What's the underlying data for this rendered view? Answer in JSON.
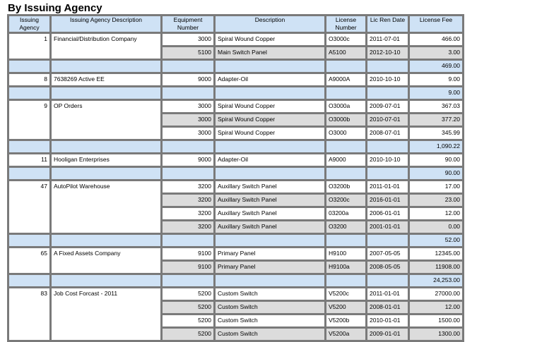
{
  "title": "By Issuing Agency",
  "columns": [
    "Issuing Agency",
    "Issuing Agency Description",
    "Equipment Number",
    "Description",
    "License Number",
    "Lic Ren Date",
    "License Fee"
  ],
  "colors": {
    "header": "#cfe2f5",
    "subtotal": "#cfe2f5",
    "alt_row": "#dcdcdc",
    "border": "#7a7a7a"
  },
  "groups": [
    {
      "agency": "1",
      "description": "Financial/Distribution Company",
      "subtotal": "469.00",
      "rows": [
        {
          "equipment": "3000",
          "desc": "Spiral Wound Copper",
          "license": "O3000c",
          "date": "2011-07-01",
          "fee": "466.00"
        },
        {
          "equipment": "5100",
          "desc": "Main Switch Panel",
          "license": "A5100",
          "date": "2012-10-10",
          "fee": "3.00"
        }
      ]
    },
    {
      "agency": "8",
      "description": "7638269 Active EE",
      "subtotal": "9.00",
      "rows": [
        {
          "equipment": "9000",
          "desc": "Adapter-Oil",
          "license": "A9000A",
          "date": "2010-10-10",
          "fee": "9.00"
        }
      ]
    },
    {
      "agency": "9",
      "description": "OP Orders",
      "subtotal": "1,090.22",
      "rows": [
        {
          "equipment": "3000",
          "desc": "Spiral Wound Copper",
          "license": "O3000a",
          "date": "2009-07-01",
          "fee": "367.03"
        },
        {
          "equipment": "3000",
          "desc": "Spiral Wound Copper",
          "license": "O3000b",
          "date": "2010-07-01",
          "fee": "377.20"
        },
        {
          "equipment": "3000",
          "desc": "Spiral Wound Copper",
          "license": "O3000",
          "date": "2008-07-01",
          "fee": "345.99"
        }
      ]
    },
    {
      "agency": "11",
      "description": "Hooligan Enterprises",
      "subtotal": "90.00",
      "rows": [
        {
          "equipment": "9000",
          "desc": "Adapter-Oil",
          "license": "A9000",
          "date": "2010-10-10",
          "fee": "90.00"
        }
      ]
    },
    {
      "agency": "47",
      "description": "AutoPilot Warehouse",
      "subtotal": "52.00",
      "rows": [
        {
          "equipment": "3200",
          "desc": "Auxillary Switch Panel",
          "license": "O3200b",
          "date": "2011-01-01",
          "fee": "17.00"
        },
        {
          "equipment": "3200",
          "desc": "Auxillary Switch Panel",
          "license": "O3200c",
          "date": "2016-01-01",
          "fee": "23.00"
        },
        {
          "equipment": "3200",
          "desc": "Auxillary Switch Panel",
          "license": "03200a",
          "date": "2006-01-01",
          "fee": "12.00"
        },
        {
          "equipment": "3200",
          "desc": "Auxillary Switch Panel",
          "license": "O3200",
          "date": "2001-01-01",
          "fee": "0.00"
        }
      ]
    },
    {
      "agency": "65",
      "description": "A Fixed Assets Company",
      "subtotal": "24,253.00",
      "rows": [
        {
          "equipment": "9100",
          "desc": "Primary Panel",
          "license": "H9100",
          "date": "2007-05-05",
          "fee": "12345.00"
        },
        {
          "equipment": "9100",
          "desc": "Primary Panel",
          "license": "H9100a",
          "date": "2008-05-05",
          "fee": "11908.00"
        }
      ]
    },
    {
      "agency": "83",
      "description": "Job Cost Forcast - 2011",
      "rows": [
        {
          "equipment": "5200",
          "desc": "Custom Switch",
          "license": "V5200c",
          "date": "2011-01-01",
          "fee": "27000.00"
        },
        {
          "equipment": "5200",
          "desc": "Custom Switch",
          "license": "V5200",
          "date": "2008-01-01",
          "fee": "12.00"
        },
        {
          "equipment": "5200",
          "desc": "Custom Switch",
          "license": "V5200b",
          "date": "2010-01-01",
          "fee": "1500.00"
        },
        {
          "equipment": "5200",
          "desc": "Custom Switch",
          "license": "V5200a",
          "date": "2009-01-01",
          "fee": "1300.00"
        }
      ]
    }
  ]
}
